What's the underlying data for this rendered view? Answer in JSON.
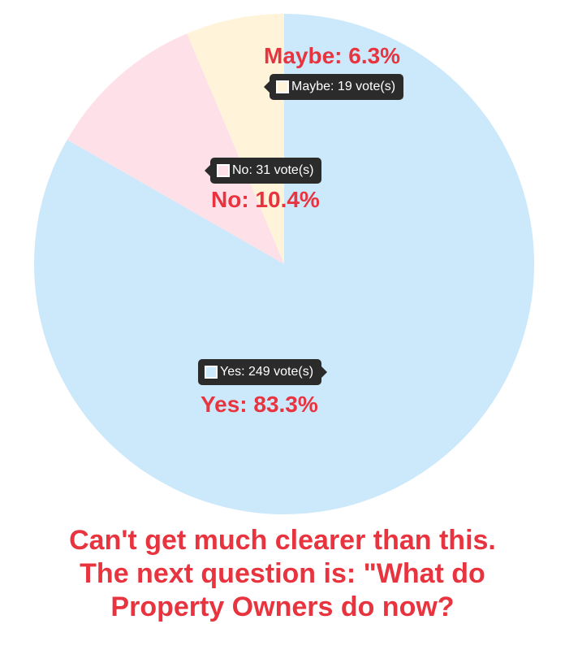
{
  "chart_data": {
    "type": "pie",
    "slices": [
      {
        "label": "Yes",
        "votes": 249,
        "percent": 83.3,
        "percent_label": "Yes: 83.3%",
        "tooltip": "Yes: 249 vote(s)",
        "color": "#cce8fb"
      },
      {
        "label": "No",
        "votes": 31,
        "percent": 10.4,
        "percent_label": "No: 10.4%",
        "tooltip": "No: 31 vote(s)",
        "color": "#fde0e8"
      },
      {
        "label": "Maybe",
        "votes": 19,
        "percent": 6.3,
        "percent_label": "Maybe: 6.3%",
        "tooltip": "Maybe: 19 vote(s)",
        "color": "#fff3da"
      }
    ],
    "start_angle": "12 o'clock",
    "direction": "clockwise"
  },
  "caption": {
    "line1": "Can't get much clearer than this.",
    "line2": "The next question is: \"What do",
    "line3": "Property Owners do now?"
  },
  "colors": {
    "label_text": "#e8343f",
    "tooltip_bg": "#2b2b2b"
  }
}
